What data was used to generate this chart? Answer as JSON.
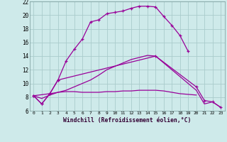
{
  "background_color": "#ceeaea",
  "grid_color": "#aacccc",
  "line_color": "#990099",
  "xlabel": "Windchill (Refroidissement éolien,°C)",
  "xlim": [
    -0.5,
    23.5
  ],
  "ylim": [
    6,
    22
  ],
  "yticks": [
    6,
    8,
    10,
    12,
    14,
    16,
    18,
    20,
    22
  ],
  "xticks": [
    0,
    1,
    2,
    3,
    4,
    5,
    6,
    7,
    8,
    9,
    10,
    11,
    12,
    13,
    14,
    15,
    16,
    17,
    18,
    19,
    20,
    21,
    22,
    23
  ],
  "line1_x": [
    0,
    1,
    2,
    3,
    4,
    5,
    6,
    7,
    8,
    9,
    10,
    11,
    12,
    13,
    14,
    15,
    16,
    17,
    18,
    19
  ],
  "line1_y": [
    8.2,
    7.0,
    8.5,
    10.5,
    13.3,
    15.0,
    16.5,
    19.0,
    19.3,
    20.2,
    20.4,
    20.6,
    21.0,
    21.3,
    21.3,
    21.2,
    19.8,
    18.5,
    17.0,
    14.7
  ],
  "line2_x": [
    0,
    1,
    2,
    3,
    15,
    20,
    21,
    22,
    23
  ],
  "line2_y": [
    8.2,
    7.0,
    8.5,
    10.5,
    14.0,
    9.5,
    7.5,
    7.3,
    6.5
  ],
  "line3_x": [
    0,
    1,
    2,
    3,
    4,
    5,
    6,
    7,
    8,
    9,
    10,
    11,
    12,
    13,
    14,
    15,
    16,
    17,
    18,
    19,
    20
  ],
  "line3_y": [
    8.2,
    7.8,
    8.3,
    8.7,
    8.8,
    8.8,
    8.7,
    8.7,
    8.7,
    8.8,
    8.8,
    8.9,
    8.9,
    9.0,
    9.0,
    9.0,
    8.9,
    8.7,
    8.5,
    8.4,
    8.3
  ],
  "line4_x": [
    0,
    2,
    3,
    4,
    5,
    6,
    7,
    8,
    9,
    10,
    11,
    12,
    13,
    14,
    15,
    20,
    21,
    22,
    23
  ],
  "line4_y": [
    8.2,
    8.5,
    8.7,
    9.0,
    9.5,
    10.0,
    10.5,
    11.2,
    12.0,
    12.5,
    13.0,
    13.5,
    13.8,
    14.1,
    14.0,
    9.0,
    7.0,
    7.3,
    6.5
  ]
}
